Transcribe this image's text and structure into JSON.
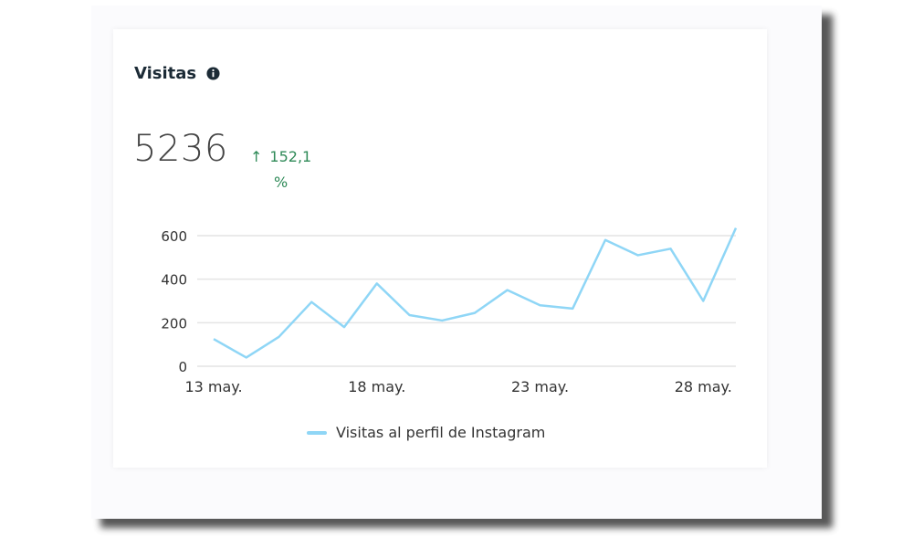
{
  "colors": {
    "series": "#8fd6f6",
    "grid": "#e4e4e4",
    "delta": "#2f8a58"
  },
  "card": {
    "title": "Visitas",
    "info_icon": "info-icon",
    "value": "5236",
    "delta_arrow": "↑",
    "delta_value": "152,1",
    "delta_unit": "%"
  },
  "chart_data": {
    "type": "line",
    "x": [
      "13 may.",
      "14 may.",
      "15 may.",
      "16 may.",
      "17 may.",
      "18 may.",
      "19 may.",
      "20 may.",
      "21 may.",
      "22 may.",
      "23 may.",
      "24 may.",
      "25 may.",
      "26 may.",
      "27 may.",
      "28 may.",
      "29 may."
    ],
    "series": [
      {
        "name": "Visitas al perfil de Instagram",
        "values": [
          125,
          40,
          135,
          295,
          180,
          380,
          235,
          210,
          245,
          350,
          280,
          265,
          580,
          510,
          540,
          300,
          635
        ]
      }
    ],
    "ylim": [
      0,
      600
    ],
    "yticks": [
      "0",
      "200",
      "400",
      "600"
    ],
    "xtick_labels": [
      "13 may.",
      "18 may.",
      "23 may.",
      "28 may."
    ],
    "grid": true,
    "legend": "bottom"
  }
}
